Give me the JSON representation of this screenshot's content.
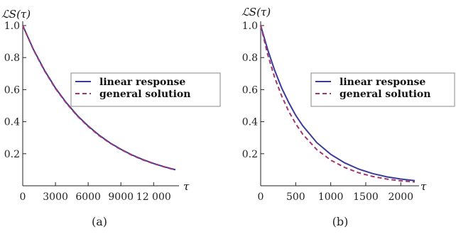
{
  "chart_data": [
    {
      "type": "line",
      "caption": "(a)",
      "ylabel": "ℒS(τ)",
      "xlabel": "τ",
      "xlim": [
        0,
        14000
      ],
      "ylim": [
        0,
        1.0
      ],
      "x_ticks": [
        0,
        3000,
        6000,
        9000,
        12000
      ],
      "x_tick_labels": [
        "0",
        "3000",
        "6000",
        "9000",
        "12 000"
      ],
      "y_ticks": [
        0.2,
        0.4,
        0.6,
        0.8,
        1.0
      ],
      "y_tick_labels": [
        "0.2",
        "0.4",
        "0.6",
        "0.8",
        "1.0"
      ],
      "legend": {
        "placement": "right"
      },
      "series": [
        {
          "name": "linear response",
          "color": "#3b3b99",
          "dash": "solid",
          "x": [
            0,
            1000,
            2000,
            3000,
            4000,
            5000,
            6000,
            7000,
            8000,
            9000,
            10000,
            11000,
            12000,
            13000,
            14000
          ],
          "values": [
            1.0,
            0.848,
            0.72,
            0.61,
            0.518,
            0.439,
            0.373,
            0.316,
            0.268,
            0.228,
            0.193,
            0.164,
            0.139,
            0.118,
            0.1
          ]
        },
        {
          "name": "general solution",
          "color": "#a0356f",
          "dash": "dashed",
          "x": [
            0,
            1000,
            2000,
            3000,
            4000,
            5000,
            6000,
            7000,
            8000,
            9000,
            10000,
            11000,
            12000,
            13000,
            14000
          ],
          "values": [
            1.0,
            0.846,
            0.717,
            0.607,
            0.515,
            0.436,
            0.37,
            0.313,
            0.266,
            0.226,
            0.191,
            0.162,
            0.138,
            0.117,
            0.099
          ]
        }
      ]
    },
    {
      "type": "line",
      "caption": "(b)",
      "ylabel": "ℒS(τ)",
      "xlabel": "τ",
      "xlim": [
        0,
        2200
      ],
      "ylim": [
        0,
        1.0
      ],
      "x_ticks": [
        0,
        500,
        1000,
        1500,
        2000
      ],
      "x_tick_labels": [
        "0",
        "500",
        "1000",
        "1500",
        "2000"
      ],
      "y_ticks": [
        0.2,
        0.4,
        0.6,
        0.8,
        1.0
      ],
      "y_tick_labels": [
        "0.2",
        "0.4",
        "0.6",
        "0.8",
        "1.0"
      ],
      "legend": {
        "placement": "right"
      },
      "series": [
        {
          "name": "linear response",
          "color": "#3b3b99",
          "dash": "solid",
          "x": [
            0,
            100,
            200,
            300,
            400,
            500,
            600,
            800,
            1000,
            1200,
            1400,
            1600,
            1800,
            2000,
            2200
          ],
          "values": [
            1.0,
            0.85,
            0.72,
            0.61,
            0.52,
            0.44,
            0.375,
            0.27,
            0.196,
            0.143,
            0.104,
            0.076,
            0.056,
            0.042,
            0.032
          ]
        },
        {
          "name": "general solution",
          "color": "#a0356f",
          "dash": "dashed",
          "x": [
            0,
            100,
            200,
            300,
            400,
            500,
            600,
            800,
            1000,
            1200,
            1400,
            1600,
            1800,
            2000,
            2200
          ],
          "values": [
            1.0,
            0.82,
            0.675,
            0.56,
            0.465,
            0.387,
            0.322,
            0.226,
            0.16,
            0.114,
            0.081,
            0.058,
            0.042,
            0.031,
            0.024
          ]
        }
      ]
    }
  ]
}
